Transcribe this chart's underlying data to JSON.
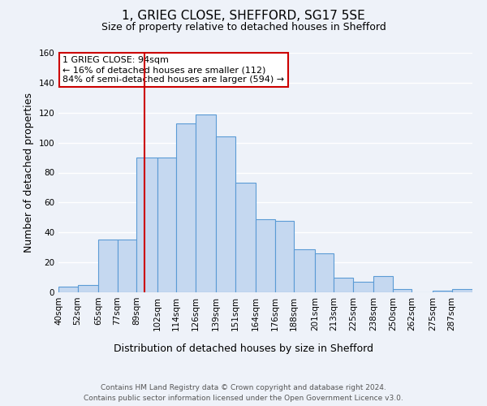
{
  "title": "1, GRIEG CLOSE, SHEFFORD, SG17 5SE",
  "subtitle": "Size of property relative to detached houses in Shefford",
  "xlabel": "Distribution of detached houses by size in Shefford",
  "ylabel": "Number of detached properties",
  "bin_labels": [
    "40sqm",
    "52sqm",
    "65sqm",
    "77sqm",
    "89sqm",
    "102sqm",
    "114sqm",
    "126sqm",
    "139sqm",
    "151sqm",
    "164sqm",
    "176sqm",
    "188sqm",
    "201sqm",
    "213sqm",
    "225sqm",
    "238sqm",
    "250sqm",
    "262sqm",
    "275sqm",
    "287sqm"
  ],
  "bin_edges": [
    40,
    52,
    65,
    77,
    89,
    102,
    114,
    126,
    139,
    151,
    164,
    176,
    188,
    201,
    213,
    225,
    238,
    250,
    262,
    275,
    287,
    300
  ],
  "bar_heights": [
    4,
    5,
    35,
    35,
    90,
    90,
    113,
    119,
    104,
    73,
    49,
    48,
    29,
    26,
    10,
    7,
    11,
    2,
    0,
    1,
    2
  ],
  "bar_color": "#c5d8f0",
  "bar_edge_color": "#5b9bd5",
  "bar_edge_width": 0.8,
  "marker_value": 94,
  "marker_color": "#cc0000",
  "ylim": [
    0,
    160
  ],
  "yticks": [
    0,
    20,
    40,
    60,
    80,
    100,
    120,
    140,
    160
  ],
  "annotation_title": "1 GRIEG CLOSE: 94sqm",
  "annotation_line1": "← 16% of detached houses are smaller (112)",
  "annotation_line2": "84% of semi-detached houses are larger (594) →",
  "annotation_box_color": "#ffffff",
  "annotation_box_edge_color": "#cc0000",
  "footer_line1": "Contains HM Land Registry data © Crown copyright and database right 2024.",
  "footer_line2": "Contains public sector information licensed under the Open Government Licence v3.0.",
  "background_color": "#eef2f9",
  "grid_color": "#ffffff",
  "title_fontsize": 11,
  "subtitle_fontsize": 9,
  "axis_label_fontsize": 9,
  "tick_fontsize": 7.5,
  "annot_fontsize": 8,
  "footer_fontsize": 6.5
}
